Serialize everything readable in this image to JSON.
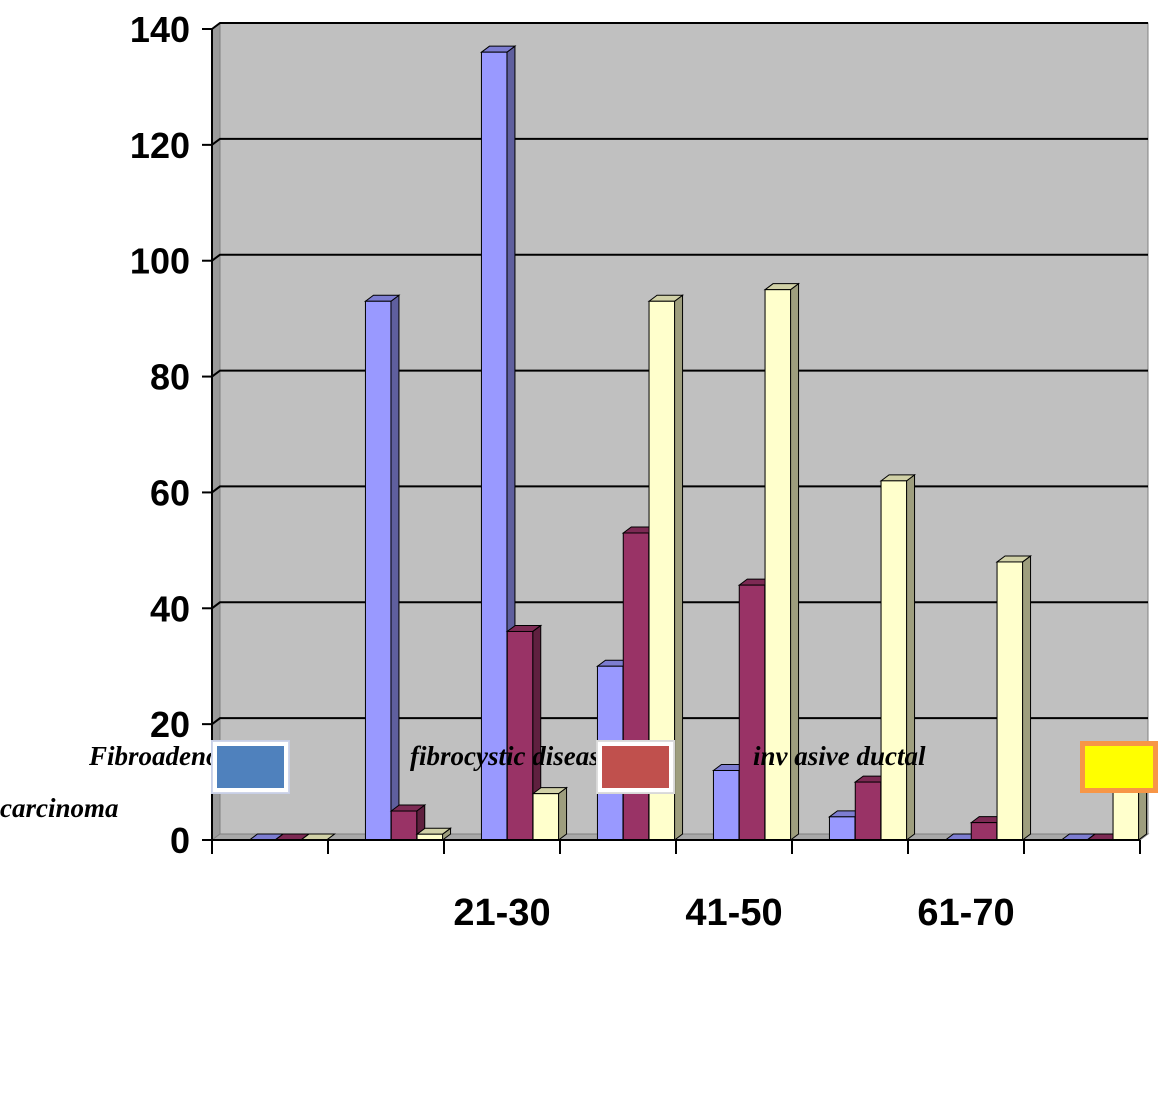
{
  "chart_data": {
    "type": "bar",
    "categories": [
      "",
      "",
      "21-30",
      "",
      "41-50",
      "",
      "61-70",
      ""
    ],
    "series": [
      {
        "name": "Fibroadenoma",
        "values": [
          0,
          93,
          136,
          30,
          12,
          4,
          0,
          0
        ],
        "color": "#9999ff"
      },
      {
        "name": "fibrocystic disease",
        "values": [
          0,
          5,
          36,
          53,
          44,
          10,
          3,
          0
        ],
        "color": "#993366"
      },
      {
        "name": "invasive ductal carcinoma",
        "values": [
          0,
          1,
          8,
          93,
          95,
          62,
          48,
          14
        ],
        "color": "#ffffcc"
      }
    ],
    "ylim": [
      0,
      140
    ],
    "yticks": [
      0,
      20,
      40,
      60,
      80,
      100,
      120,
      140
    ],
    "grid": true,
    "plot_background": "#c0c0c0",
    "legend": {
      "placement": "bottom",
      "line1": [
        {
          "text": "Fibroadenoma",
          "swatch_color": "#4f81bd"
        },
        {
          "text": "fibrocystic disease",
          "swatch_color": "#c0504d"
        },
        {
          "text": "inv   asive ductal",
          "swatch_color": "#ffff00"
        }
      ],
      "line2": "carcinoma"
    }
  }
}
